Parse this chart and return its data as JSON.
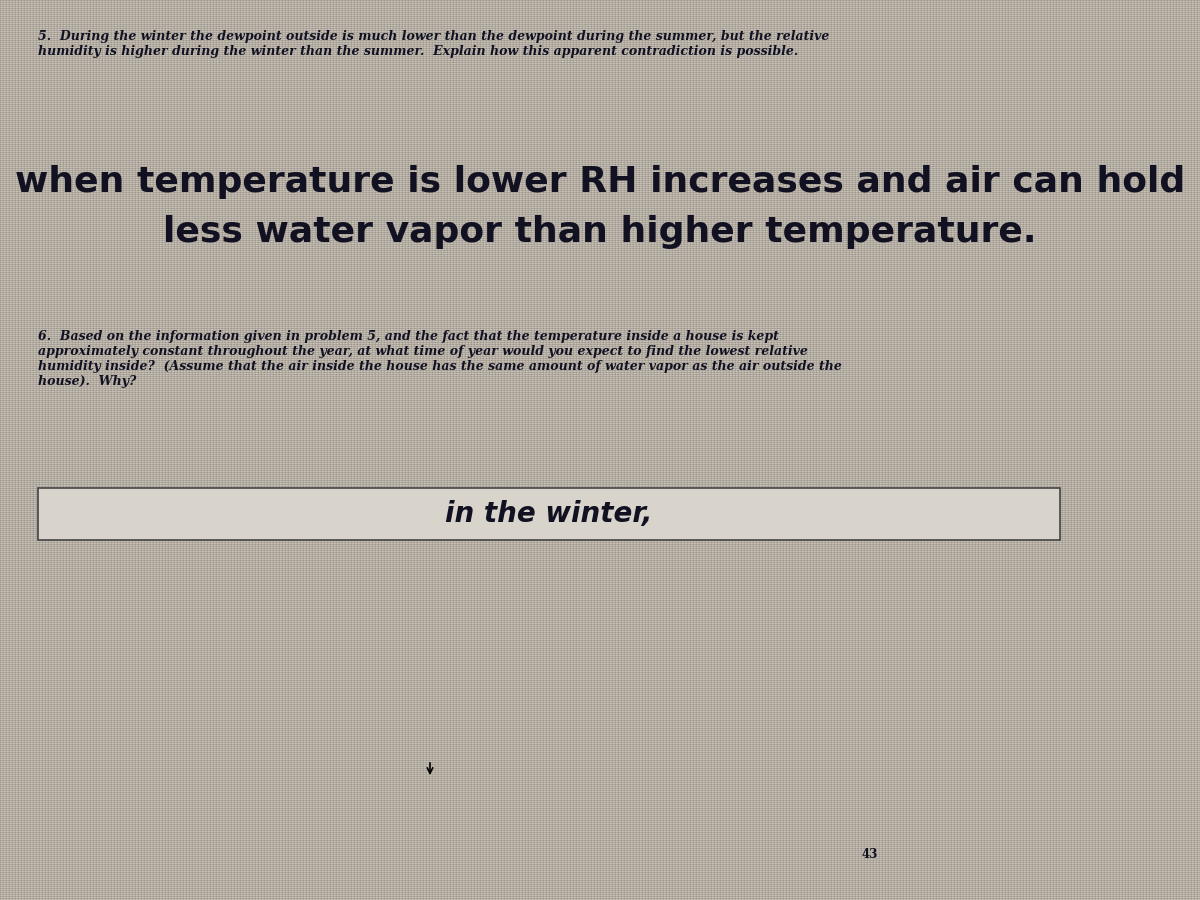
{
  "background_color": "#b8b4ac",
  "page_number": "43",
  "question5_header": "5.  During the winter the dewpoint outside is much lower than the dewpoint during the summer, but the relative\nhumidity is higher during the winter than the summer.  Explain how this apparent contradiction is possible.",
  "answer5_line1": "when temperature is lower RH increases and air can hold",
  "answer5_line2": "less water vapor than higher temperature.",
  "question6_header": "6.  Based on the information given in problem 5, and the fact that the temperature inside a house is kept\napproximately constant throughout the year, at what time of year would you expect to find the lowest relative\nhumidity inside?  (Assume that the air inside the house has the same amount of water vapor as the air outside the\nhouse).  Why?",
  "answer6_text": "in the winter,",
  "answer_box_facecolor": "#d8d4cc",
  "text_color": "#111122",
  "answer_text_color": "#111122",
  "header_fontsize": 9.0,
  "answer5_fontsize": 26,
  "answer6_fontsize": 20,
  "question6_fontsize": 9.0,
  "page_num_fontsize": 8.5,
  "grid_bg_light": "#c8c5be",
  "grid_bg_dark": "#9a9890"
}
